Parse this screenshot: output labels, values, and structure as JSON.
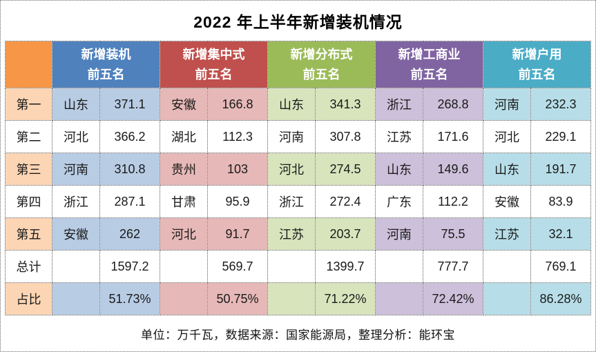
{
  "title": "2022 年上半年新增装机情况",
  "footer": {
    "note": "单位：万千瓦，数据来源：国家能源局，整理分析：能环宝"
  },
  "colors": {
    "rank_header": "#F79646",
    "rank_light": "#FCD5B4",
    "border": "#555555",
    "background": "#FFFFFF",
    "title_text": "#000000",
    "header_text": "#FFFFFF"
  },
  "chart_data": {
    "type": "table",
    "title": "2022 年上半年新增装机情况",
    "unit": "万千瓦",
    "row_labels": [
      "第一",
      "第二",
      "第三",
      "第四",
      "第五",
      "总计",
      "占比"
    ],
    "series": [
      {
        "name": "新增装机前五名",
        "header_line1": "新增装机",
        "header_line2": "前五名",
        "color": "#4F81BD",
        "light_color": "#B8CCE4",
        "provinces": [
          "山东",
          "河北",
          "河南",
          "浙江",
          "安徽"
        ],
        "values": [
          371.1,
          366.2,
          310.8,
          287.1,
          262
        ],
        "total": 1597.2,
        "share": "51.73%"
      },
      {
        "name": "新增集中式前五名",
        "header_line1": "新增集中式",
        "header_line2": "前五名",
        "color": "#C0504D",
        "light_color": "#E6B8B7",
        "provinces": [
          "安徽",
          "湖北",
          "贵州",
          "甘肃",
          "河北"
        ],
        "values": [
          166.8,
          112.3,
          103,
          95.9,
          91.7
        ],
        "total": 569.7,
        "share": "50.75%"
      },
      {
        "name": "新增分布式前五名",
        "header_line1": "新增分布式",
        "header_line2": "前五名",
        "color": "#9BBB59",
        "light_color": "#D8E4BC",
        "provinces": [
          "山东",
          "河南",
          "河北",
          "浙江",
          "江苏"
        ],
        "values": [
          341.3,
          307.8,
          274.5,
          272.4,
          203.7
        ],
        "total": 1399.7,
        "share": "71.22%"
      },
      {
        "name": "新增工商业前五名",
        "header_line1": "新增工商业",
        "header_line2": "前五名",
        "color": "#8064A2",
        "light_color": "#CCC0DA",
        "provinces": [
          "浙江",
          "江苏",
          "山东",
          "广东",
          "河南"
        ],
        "values": [
          268.8,
          171.6,
          149.6,
          112.2,
          75.5
        ],
        "total": 777.7,
        "share": "72.42%"
      },
      {
        "name": "新增户用前五名",
        "header_line1": "新增户用",
        "header_line2": "前五名",
        "color": "#4BACC6",
        "light_color": "#B7DEE8",
        "provinces": [
          "河南",
          "河北",
          "山东",
          "安徽",
          "江苏"
        ],
        "values": [
          232.3,
          229.1,
          191.7,
          83.9,
          32.1
        ],
        "total": 769.1,
        "share": "86.28%"
      }
    ]
  }
}
